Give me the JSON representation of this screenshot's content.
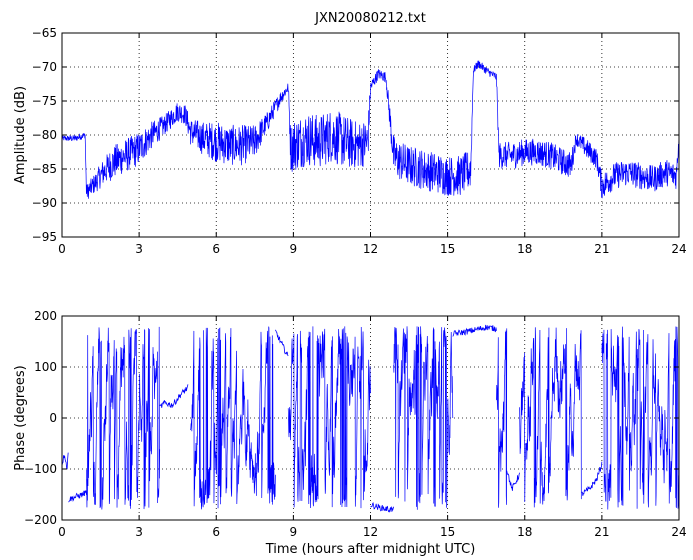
{
  "colors": {
    "series": "#0000ff",
    "axes": "#000000",
    "grid": "#000000",
    "background": "#ffffff"
  },
  "chart_data": [
    {
      "type": "line",
      "title": "JXN20080212.txt",
      "xlabel": "",
      "ylabel": "Amplitude (dB)",
      "xlim": [
        0,
        24
      ],
      "ylim": [
        -95,
        -65
      ],
      "grid": true,
      "xticks": [
        0,
        3,
        6,
        9,
        12,
        15,
        18,
        21,
        24
      ],
      "xtick_labels": [
        "0",
        "3",
        "6",
        "9",
        "12",
        "15",
        "18",
        "21",
        "24"
      ],
      "yticks": [
        -95,
        -90,
        -85,
        -80,
        -75,
        -70,
        -65
      ],
      "ytick_labels": [
        "−95",
        "−90",
        "−85",
        "−80",
        "−75",
        "−70",
        "−65"
      ],
      "series": [
        {
          "x": [
            0,
            0.5,
            0.9,
            0.95,
            1.3,
            1.6,
            2.0,
            2.5,
            3.0,
            3.5,
            4.0,
            4.5,
            4.8,
            5.0,
            5.5,
            6.0,
            6.5,
            7.0,
            7.5,
            8.0,
            8.5,
            8.8,
            8.9,
            9.0,
            9.5,
            10.0,
            10.5,
            11.0,
            11.5,
            11.9,
            12.0,
            12.3,
            12.6,
            12.9,
            13.0,
            13.5,
            14.0,
            14.5,
            15.0,
            15.5,
            15.9,
            16.0,
            16.2,
            16.5,
            16.9,
            17.0,
            17.5,
            18.0,
            18.5,
            19.0,
            19.5,
            19.8,
            20.0,
            20.4,
            20.8,
            21.0,
            21.5,
            22.0,
            22.5,
            23.0,
            23.5,
            23.9,
            24.0
          ],
          "y": [
            -80.5,
            -80.5,
            -80.0,
            -88.5,
            -87.0,
            -85.5,
            -84.0,
            -83.0,
            -82.0,
            -80.0,
            -78.5,
            -76.5,
            -77.0,
            -79.5,
            -80.5,
            -81.0,
            -81.5,
            -81.5,
            -81.0,
            -78.0,
            -74.5,
            -73.0,
            -82.0,
            -81.5,
            -80.5,
            -81.0,
            -80.0,
            -81.0,
            -81.5,
            -81.0,
            -73.0,
            -71.0,
            -71.5,
            -83.0,
            -83.5,
            -84.5,
            -85.0,
            -85.5,
            -86.0,
            -86.0,
            -85.0,
            -70.5,
            -69.5,
            -70.5,
            -71.5,
            -83.0,
            -83.0,
            -82.5,
            -82.5,
            -83.0,
            -84.0,
            -84.5,
            -80.5,
            -82.0,
            -83.5,
            -87.5,
            -86.0,
            -85.5,
            -86.0,
            -86.5,
            -85.5,
            -86.0,
            -80.0
          ],
          "spread": [
            0.4,
            0.5,
            0.5,
            1.2,
            1.5,
            2.0,
            2.5,
            2.5,
            2.5,
            2.0,
            1.5,
            1.5,
            1.5,
            2.0,
            2.5,
            3.0,
            3.0,
            3.0,
            2.5,
            1.5,
            1.0,
            0.8,
            3.5,
            4.0,
            4.0,
            4.0,
            4.0,
            4.0,
            3.5,
            3.5,
            1.0,
            0.8,
            0.8,
            3.0,
            3.0,
            3.0,
            3.0,
            3.0,
            3.0,
            3.0,
            3.0,
            0.6,
            0.6,
            0.6,
            0.6,
            2.0,
            2.0,
            2.0,
            2.0,
            2.0,
            2.0,
            2.0,
            1.0,
            1.5,
            1.5,
            2.0,
            2.0,
            2.0,
            2.0,
            2.0,
            2.0,
            2.0,
            1.0
          ]
        }
      ]
    },
    {
      "type": "line",
      "title": "",
      "xlabel": "Time (hours after midnight UTC)",
      "ylabel": "Phase (degrees)",
      "xlim": [
        0,
        24
      ],
      "ylim": [
        -200,
        200
      ],
      "grid": true,
      "xticks": [
        0,
        3,
        6,
        9,
        12,
        15,
        18,
        21,
        24
      ],
      "xtick_labels": [
        "0",
        "3",
        "6",
        "9",
        "12",
        "15",
        "18",
        "21",
        "24"
      ],
      "yticks": [
        -200,
        -100,
        0,
        100,
        200
      ],
      "ytick_labels": [
        "−200",
        "−100",
        "0",
        "100",
        "200"
      ],
      "series": [
        {
          "segments": [
            {
              "x": [
                0.0,
                0.1,
                0.2,
                0.25
              ],
              "y": [
                -90,
                -70,
                -100,
                -60
              ]
            },
            {
              "x": [
                0.25,
                0.5,
                0.8,
                0.95
              ],
              "y": [
                -160,
                -155,
                -150,
                -145
              ]
            },
            {
              "x": [
                3.8,
                4.0,
                4.3,
                4.6,
                4.9
              ],
              "y": [
                20,
                30,
                25,
                45,
                60
              ]
            },
            {
              "x": [
                8.3,
                8.5,
                8.8
              ],
              "y": [
                170,
                150,
                120
              ]
            },
            {
              "x": [
                12.0,
                12.3,
                12.6,
                12.9
              ],
              "y": [
                -170,
                -175,
                -178,
                -180
              ]
            },
            {
              "x": [
                15.2,
                15.6,
                16.0,
                16.5,
                16.9
              ],
              "y": [
                165,
                168,
                172,
                178,
                175
              ]
            },
            {
              "x": [
                17.3,
                17.5,
                17.8
              ],
              "y": [
                -100,
                -140,
                -110
              ]
            },
            {
              "x": [
                20.2,
                20.5,
                20.8,
                21.0
              ],
              "y": [
                -150,
                -140,
                -120,
                -90
              ]
            }
          ],
          "wrap_intervals": [
            [
              0.95,
              3.8
            ],
            [
              5.0,
              8.3
            ],
            [
              8.8,
              12.0
            ],
            [
              12.9,
              15.2
            ],
            [
              16.9,
              17.3
            ],
            [
              17.8,
              20.2
            ],
            [
              21.0,
              24.0
            ]
          ],
          "wrap_range": [
            -180,
            180
          ]
        }
      ]
    }
  ]
}
